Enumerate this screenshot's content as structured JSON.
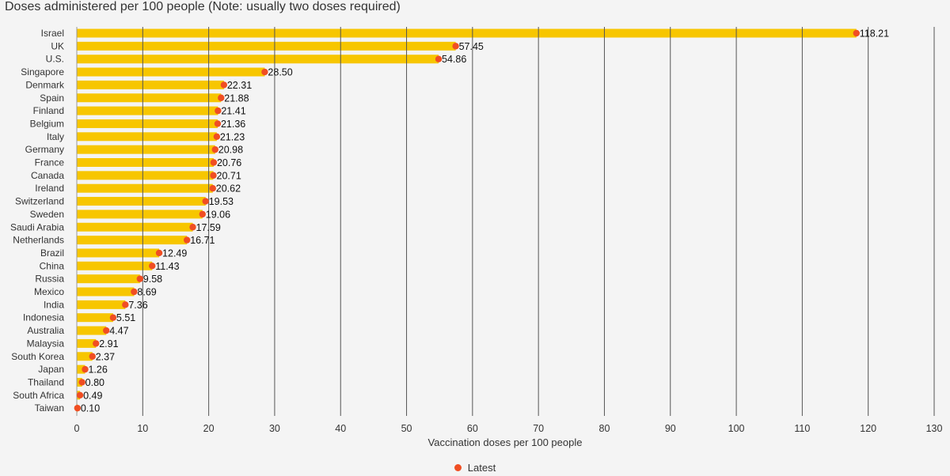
{
  "chart_data": {
    "type": "bar",
    "title": "Doses administered per 100 people (Note: usually two doses required)",
    "xlabel": "Vaccination doses per 100 people",
    "ylabel": "",
    "xlim": [
      0,
      130
    ],
    "x_ticks": [
      0,
      10,
      20,
      30,
      40,
      50,
      60,
      70,
      80,
      90,
      100,
      110,
      120,
      130
    ],
    "grid": true,
    "orientation": "horizontal",
    "legend_position": "bottom-center",
    "categories": [
      "Israel",
      "UK",
      "U.S.",
      "Singapore",
      "Denmark",
      "Spain",
      "Finland",
      "Belgium",
      "Italy",
      "Germany",
      "France",
      "Canada",
      "Ireland",
      "Switzerland",
      "Sweden",
      "Saudi Arabia",
      "Netherlands",
      "Brazil",
      "China",
      "Russia",
      "Mexico",
      "India",
      "Indonesia",
      "Australia",
      "Malaysia",
      "South Korea",
      "Japan",
      "Thailand",
      "South Africa",
      "Taiwan"
    ],
    "values": [
      118.21,
      57.45,
      54.86,
      28.5,
      22.31,
      21.88,
      21.41,
      21.36,
      21.23,
      20.98,
      20.76,
      20.71,
      20.62,
      19.53,
      19.06,
      17.59,
      16.71,
      12.49,
      11.43,
      9.58,
      8.69,
      7.36,
      5.51,
      4.47,
      2.91,
      2.37,
      1.26,
      0.8,
      0.49,
      0.1
    ],
    "value_labels": [
      "118.21",
      "57.45",
      "54.86",
      "28.50",
      "22.31",
      "21.88",
      "21.41",
      "21.36",
      "21.23",
      "20.98",
      "20.76",
      "20.71",
      "20.62",
      "19.53",
      "19.06",
      "17.59",
      "16.71",
      "12.49",
      "11.43",
      "9.58",
      "8.69",
      "7.36",
      "5.51",
      "4.47",
      "2.91",
      "2.37",
      "1.26",
      "0.80",
      "0.49",
      "0.10"
    ],
    "legend": [
      {
        "name": "Latest",
        "marker": "dot"
      }
    ],
    "colors": {
      "bar": "#f7c600",
      "dot": "#f04e23",
      "grid": "#555555",
      "background": "#f4f4f4"
    }
  }
}
